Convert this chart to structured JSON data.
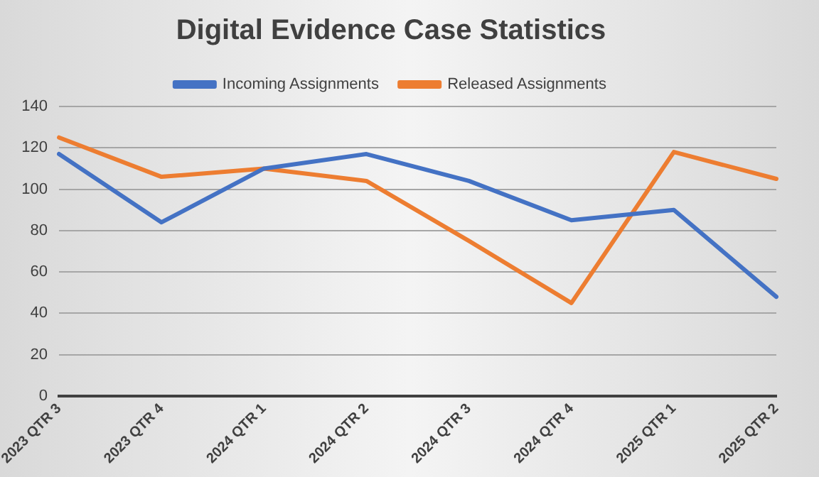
{
  "chart_data": {
    "type": "line",
    "title": "Digital Evidence Case Statistics",
    "categories": [
      "2023 QTR 3",
      "2023 QTR 4",
      "2024 QTR 1",
      "2024 QTR 2",
      "2024 QTR 3",
      "2024 QTR 4",
      "2025 QTR 1",
      "2025 QTR 2"
    ],
    "series": [
      {
        "name": "Incoming Assignments",
        "color": "#4472c4",
        "values": [
          117,
          84,
          110,
          117,
          104,
          85,
          90,
          48
        ]
      },
      {
        "name": "Released Assignments",
        "color": "#ed7d31",
        "values": [
          125,
          106,
          110,
          104,
          75,
          45,
          118,
          105
        ]
      }
    ],
    "ylim": [
      0,
      140
    ],
    "yticks": [
      0,
      20,
      40,
      60,
      80,
      100,
      120,
      140
    ],
    "grid": "y",
    "legend": "top",
    "marker": "none",
    "line_style": "solid"
  }
}
